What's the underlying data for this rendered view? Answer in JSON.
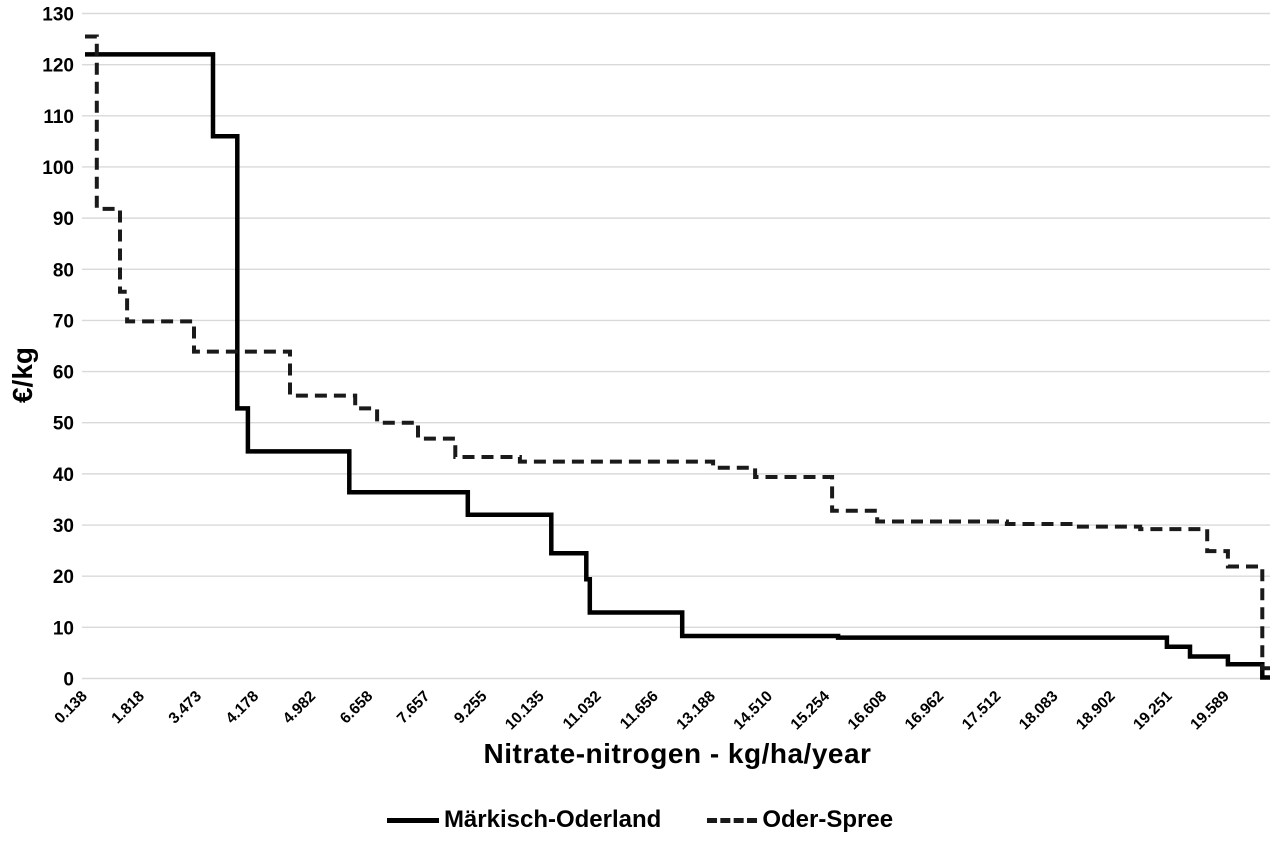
{
  "chart_data": {
    "type": "line",
    "subtype": "step",
    "title": "",
    "xlabel": "Nitrate-nitrogen - kg/ha/year",
    "ylabel": "€/kg",
    "ylim": [
      0,
      130
    ],
    "ytick_interval": 10,
    "ytick_labels": [
      "0",
      "10",
      "20",
      "30",
      "40",
      "50",
      "60",
      "70",
      "80",
      "90",
      "100",
      "110",
      "120",
      "130"
    ],
    "xtick_labels": [
      "0.138",
      "1.818",
      "3.473",
      "4.178",
      "4.982",
      "6.658",
      "7.657",
      "9.255",
      "10.135",
      "11.032",
      "11.656",
      "13.188",
      "14.510",
      "15.254",
      "16.608",
      "16.962",
      "17.512",
      "18.083",
      "18.902",
      "19.251",
      "19.589"
    ],
    "x_value_range": [
      0,
      20
    ],
    "grid": "horizontal-only",
    "grid_color": "#d9d9d9",
    "legend_position": "bottom-center",
    "series": [
      {
        "name": "Märkisch-Oderland",
        "style": "solid",
        "color": "#000000",
        "x_end": 20.05,
        "points": [
          [
            0,
            122
          ],
          [
            2.16,
            106
          ],
          [
            2.57,
            52.8
          ],
          [
            2.75,
            44.4
          ],
          [
            4.46,
            36.4
          ],
          [
            6.46,
            32.0
          ],
          [
            7.87,
            24.5
          ],
          [
            8.46,
            19.4
          ],
          [
            8.52,
            12.9
          ],
          [
            10.08,
            8.3
          ],
          [
            12.71,
            8.0
          ],
          [
            18.26,
            6.2
          ],
          [
            18.65,
            4.3
          ],
          [
            19.29,
            2.8
          ],
          [
            19.87,
            0.2
          ]
        ]
      },
      {
        "name": "Oder-Spree",
        "style": "dashed",
        "color": "#1a1a1a",
        "x_end": 20.0,
        "points": [
          [
            0,
            125.5
          ],
          [
            0.2,
            91.8
          ],
          [
            0.59,
            75.6
          ],
          [
            0.71,
            69.8
          ],
          [
            1.84,
            63.9
          ],
          [
            3.46,
            55.3
          ],
          [
            4.56,
            52.8
          ],
          [
            4.93,
            50.0
          ],
          [
            5.62,
            46.9
          ],
          [
            6.25,
            43.3
          ],
          [
            7.34,
            42.4
          ],
          [
            10.6,
            41.2
          ],
          [
            11.31,
            39.4
          ],
          [
            12.61,
            32.8
          ],
          [
            13.37,
            30.7
          ],
          [
            15.56,
            30.2
          ],
          [
            16.68,
            29.7
          ],
          [
            17.81,
            29.2
          ],
          [
            18.94,
            24.9
          ],
          [
            19.29,
            21.9
          ],
          [
            19.87,
            2.0
          ]
        ]
      }
    ]
  }
}
